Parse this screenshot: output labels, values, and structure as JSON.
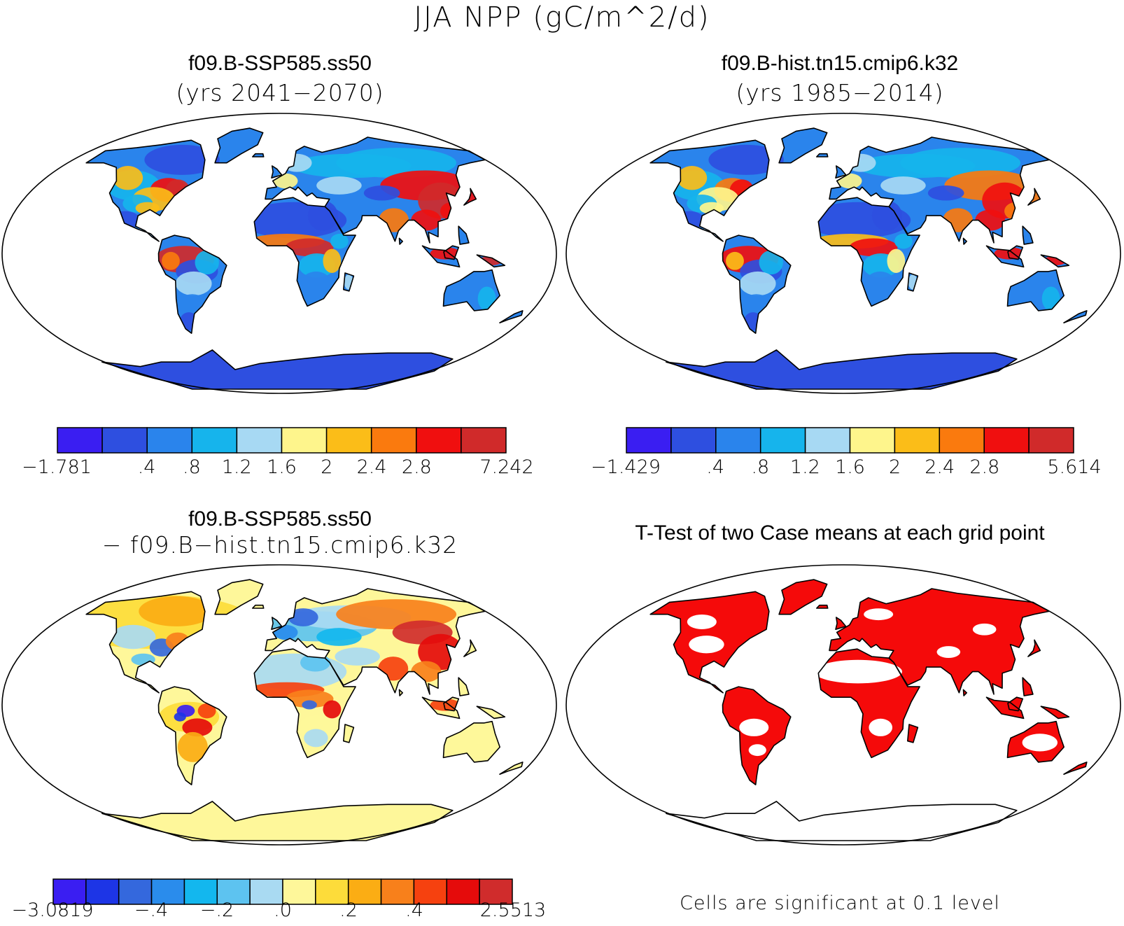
{
  "main_title": "JJA NPP (gC/m^2/d)",
  "panels": {
    "p1": {
      "title": "f09.B-SSP585.ss50",
      "subtitle": "(yrs 2041−2070)"
    },
    "p2": {
      "title": "f09.B-hist.tn15.cmip6.k32",
      "subtitle": "(yrs 1985−2014)"
    },
    "p3": {
      "title": "f09.B-SSP585.ss50",
      "subtitle": "− f09.B−hist.tn15.cmip6.k32"
    },
    "p4": {
      "title": "T-Test of two Case means at each grid point",
      "note": "Cells are significant at 0.1 level"
    }
  },
  "colorbars": {
    "cb1": {
      "colors": [
        "#3a1ef2",
        "#2e4fe0",
        "#2a84ec",
        "#16b4ec",
        "#a7d9f3",
        "#fef58c",
        "#fbbd18",
        "#fa7a0e",
        "#f00f0f",
        "#d02a2a"
      ],
      "labels": [
        "−1.781",
        ".4",
        ".8",
        "1.2",
        "1.6",
        "2",
        "2.4",
        "2.8",
        "7.242"
      ],
      "label_edges": [
        0,
        2,
        3,
        4,
        5,
        6,
        7,
        8,
        10
      ]
    },
    "cb2": {
      "colors": [
        "#3a1ef2",
        "#2e4fe0",
        "#2a84ec",
        "#16b4ec",
        "#a7d9f3",
        "#fef58c",
        "#fbbd18",
        "#fa7a0e",
        "#f00f0f",
        "#d02a2a"
      ],
      "labels": [
        "−1.429",
        ".4",
        ".8",
        "1.2",
        "1.6",
        "2",
        "2.4",
        "2.8",
        "5.614"
      ],
      "label_edges": [
        0,
        2,
        3,
        4,
        5,
        6,
        7,
        8,
        10
      ]
    },
    "cb3": {
      "colors": [
        "#3a1ef2",
        "#1d35e6",
        "#3468dd",
        "#2a8cec",
        "#13b7ee",
        "#5dc3f0",
        "#a9daf2",
        "#fef79a",
        "#fddc3a",
        "#fbad14",
        "#f8801b",
        "#f6410f",
        "#e50b0b",
        "#d02c2c"
      ],
      "labels": [
        "−3.0819",
        "−.4",
        "−.2",
        ".0",
        ".2",
        ".4",
        "2.5513"
      ],
      "label_edges": [
        0,
        3,
        5,
        7,
        9,
        11,
        14
      ]
    }
  },
  "map_colors": {
    "ocean": "#ffffff",
    "coast": "#000000",
    "significant": "#f50a0a"
  }
}
